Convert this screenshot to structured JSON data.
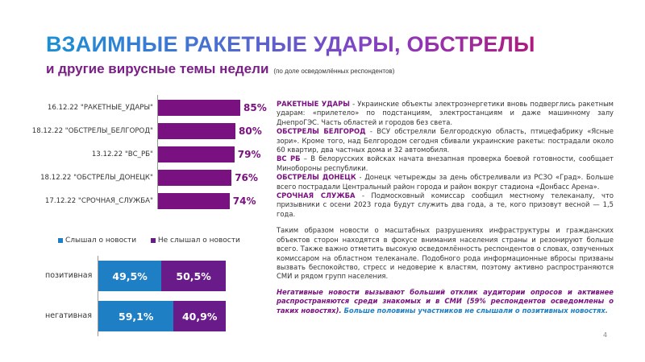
{
  "title": "ВЗАИМНЫЕ РАКЕТНЫЕ УДАРЫ, ОБСТРЕЛЫ",
  "subtitle": "и другие вирусные темы недели",
  "subtitle_note": "(по доле осведомлённых респондентов)",
  "colors": {
    "bar": "#7a1180",
    "heard": "#1f7fc4",
    "not_heard": "#6a1b8a"
  },
  "chart_data": [
    {
      "type": "bar",
      "orientation": "horizontal",
      "categories": [
        "16.12.22 \"РАКЕТНЫЕ_УДАРЫ\"",
        "18.12.22 \"ОБСТРЕЛЫ_БЕЛГОРОД\"",
        "13.12.22 \"ВС_РБ\"",
        "18.12.22 \"ОБСТРЕЛЫ_ДОНЕЦК\"",
        "17.12.22 \"СРОЧНАЯ_СЛУЖБА\""
      ],
      "values": [
        85,
        80,
        79,
        76,
        74
      ],
      "value_labels": [
        "85%",
        "80%",
        "79%",
        "76%",
        "74%"
      ],
      "xlim": [
        0,
        100
      ]
    },
    {
      "type": "bar",
      "stacked": true,
      "orientation": "horizontal",
      "categories": [
        "позитивная",
        "негативная"
      ],
      "legend_position": "top",
      "series": [
        {
          "name": "Слышал о новости",
          "values": [
            49.5,
            59.1
          ],
          "labels": [
            "49,5%",
            "59,1%"
          ],
          "color": "#1f7fc4"
        },
        {
          "name": "Не слышал о новости",
          "values": [
            50.5,
            40.9
          ],
          "labels": [
            "50,5%",
            "40,9%"
          ],
          "color": "#6a1b8a"
        }
      ]
    }
  ],
  "text": {
    "items": [
      {
        "head": "РАКЕТНЫЕ УДАРЫ",
        "body": " - Украинские объекты электроэнергетики вновь подверглись ракетным ударам: «прилетело» по подстанциям, электростанциям и даже машинному залу ДнепроГЭС. Часть областей и городов без света."
      },
      {
        "head": "ОБСТРЕЛЫ БЕЛГОРОД",
        "body": " - ВСУ обстреляли Белгородскую область, птицефабрику «Ясные зори». Кроме того, над Белгородом сегодня сбивали украинские ракеты: пострадали около 60 квартир, два частных дома и 32 автомобиля."
      },
      {
        "head": "ВС РБ",
        "body": " – В белорусских войсках начата внезапная проверка боевой готовности, сообщает Минобороны республики."
      },
      {
        "head": "ОБСТРЕЛЫ ДОНЕЦК",
        "body": " - Донецк четырежды за день обстреливали из РСЗО «Град». Больше всего пострадали Центральный район города и район вокруг стадиона «Донбасс Арена»."
      },
      {
        "head": "СРОЧНАЯ СЛУЖБА",
        "body": " - Подмосковный комиссар сообщил местному телеканалу, что призывники с осени 2023 года будут служить два года, а те, кого призовут весной — 1,5 года."
      }
    ],
    "conclusion": "Таким образом новости о масштабных разрушениях инфраструктуры и гражданских объектов сторон находятся в фокусе внимания населения страны и резонируют больше всего. Также важно отметить высокую осведомлённость респондентов о словах, озвученных комиссаром на областном телеканале. Подобного рода информационные вбросы призваны вызвать беспокойство, стресс и недоверие к властям, поэтому активно распространяются СМИ и рядом групп населения.",
    "final_purple": "Негативные новости вызывают больший отклик аудитории опросов и активнее распространяются среди знакомых и в СМИ (59% респондентов осведомлены о таких новостях).",
    "final_blue": " Больше половины участников не слышали о позитивных новостях."
  },
  "page_number": "4"
}
